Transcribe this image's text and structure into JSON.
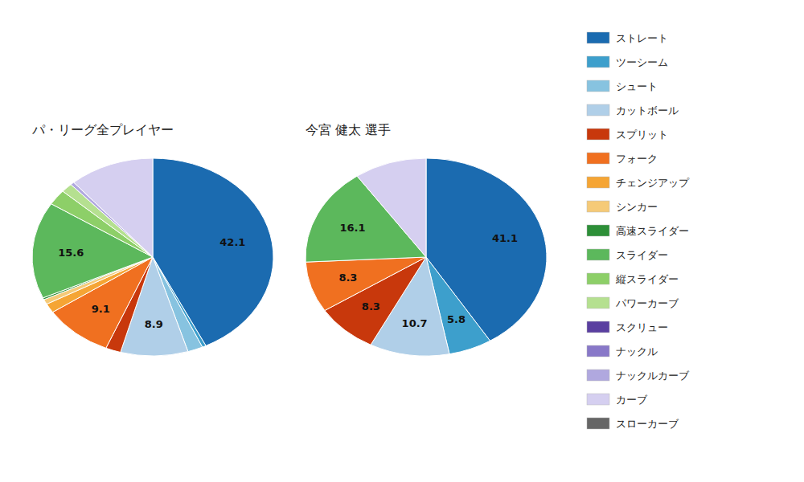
{
  "chart_data": [
    {
      "type": "pie",
      "title": "パ・リーグ全プレイヤー",
      "categories": [
        "ストレート",
        "ツーシーム",
        "シュート",
        "カットボール",
        "スプリット",
        "フォーク",
        "チェンジアップ",
        "シンカー",
        "高速スライダー",
        "スライダー",
        "縦スライダー",
        "パワーカーブ",
        "スクリュー",
        "ナックル",
        "ナックルカーブ",
        "カーブ",
        "スローカーブ"
      ],
      "values": [
        42.1,
        0.5,
        2.0,
        8.9,
        2.0,
        9.1,
        1.5,
        0.8,
        0.3,
        15.6,
        2.5,
        1.5,
        0.0,
        0.0,
        0.5,
        11.2,
        0.0
      ],
      "value_labels": [
        "42.1",
        null,
        null,
        "8.9",
        null,
        "9.1",
        null,
        null,
        null,
        "15.6",
        null,
        null,
        null,
        null,
        null,
        null,
        null
      ],
      "colors": [
        "#1b6bb0",
        "#3d9fcc",
        "#87c3e0",
        "#b0cfe8",
        "#c8380c",
        "#f07020",
        "#f5a535",
        "#f5ca78",
        "#2d8f38",
        "#5cb85c",
        "#8dcf68",
        "#b5e090",
        "#5a3fa0",
        "#8878c8",
        "#b0a8df",
        "#d5cff0",
        "#666666"
      ],
      "data_labels": true,
      "legend": "right"
    },
    {
      "type": "pie",
      "title": "今宮 健太  選手",
      "categories": [
        "ストレート",
        "ツーシーム",
        "シュート",
        "カットボール",
        "スプリット",
        "フォーク",
        "チェンジアップ",
        "シンカー",
        "高速スライダー",
        "スライダー",
        "縦スライダー",
        "パワーカーブ",
        "スクリュー",
        "ナックル",
        "ナックルカーブ",
        "カーブ",
        "スローカーブ"
      ],
      "values": [
        41.1,
        5.8,
        0.0,
        10.7,
        8.3,
        8.3,
        0.0,
        0.0,
        0.0,
        16.1,
        0.0,
        0.0,
        0.0,
        0.0,
        0.0,
        9.7,
        0.0
      ],
      "value_labels": [
        "41.1",
        "5.8",
        null,
        "10.7",
        "8.3",
        "8.3",
        null,
        null,
        null,
        "16.1",
        null,
        null,
        null,
        null,
        null,
        null,
        null
      ],
      "colors": [
        "#1b6bb0",
        "#3d9fcc",
        "#87c3e0",
        "#b0cfe8",
        "#c8380c",
        "#f07020",
        "#f5a535",
        "#f5ca78",
        "#2d8f38",
        "#5cb85c",
        "#8dcf68",
        "#b5e090",
        "#5a3fa0",
        "#8878c8",
        "#b0a8df",
        "#d5cff0",
        "#666666"
      ],
      "data_labels": true
    }
  ]
}
